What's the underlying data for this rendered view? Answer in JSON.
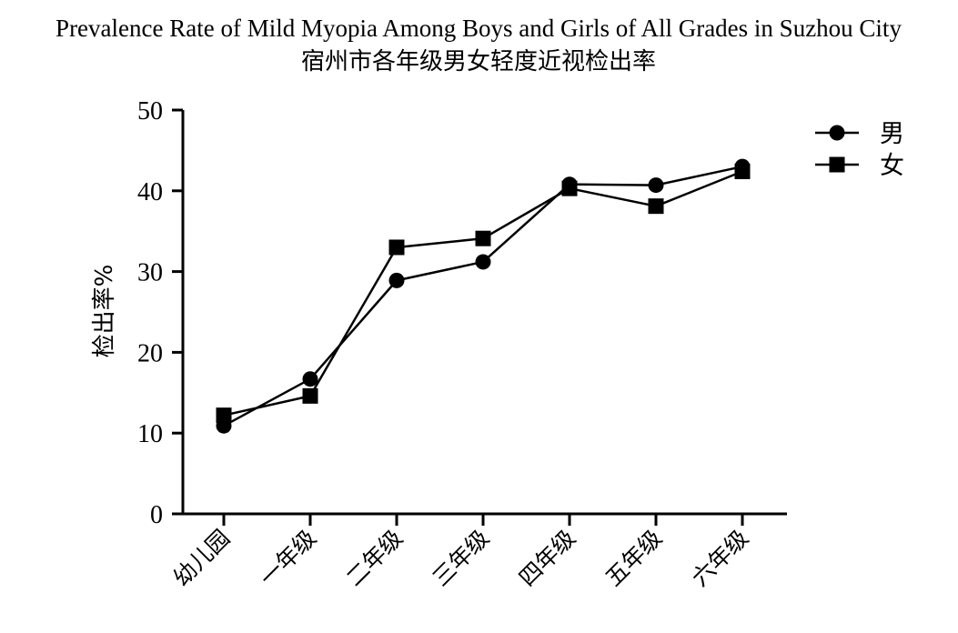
{
  "chart_data": {
    "type": "line",
    "title": "Prevalence Rate of Mild Myopia Among Boys and Girls of All Grades in Suzhou City",
    "subtitle": "宿州市各年级男女轻度近视检出率",
    "xlabel": "",
    "ylabel": "检出率%",
    "ylim": [
      0,
      50
    ],
    "yticks": [
      0,
      10,
      20,
      30,
      40,
      50
    ],
    "categories": [
      "幼儿园",
      "一年级",
      "二年级",
      "三年级",
      "四年级",
      "五年级",
      "六年级"
    ],
    "series": [
      {
        "name": "男",
        "marker": "circle",
        "values": [
          10.9,
          16.7,
          28.9,
          31.2,
          40.8,
          40.7,
          43.0
        ]
      },
      {
        "name": "女",
        "marker": "square",
        "values": [
          12.2,
          14.6,
          33.0,
          34.1,
          40.3,
          38.1,
          42.4
        ]
      }
    ],
    "legend_position": "top-right",
    "grid": false
  },
  "colors": {
    "line": "#000000",
    "marker": "#000000",
    "background": "#ffffff"
  }
}
